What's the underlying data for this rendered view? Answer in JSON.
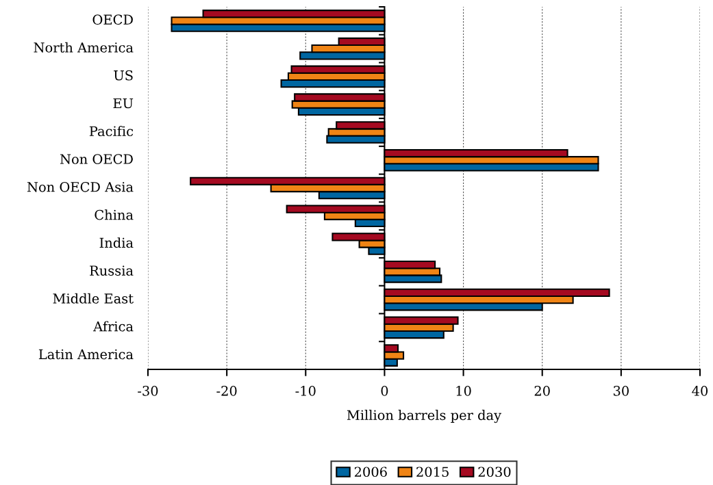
{
  "chart_data": {
    "type": "bar",
    "orientation": "horizontal",
    "xlabel": "Million barrels per day",
    "categories": [
      "OECD",
      "North America",
      "US",
      "EU",
      "Pacific",
      "Non OECD",
      "Non OECD Asia",
      "China",
      "India",
      "Russia",
      "Middle East",
      "Africa",
      "Latin America"
    ],
    "series": [
      {
        "name": "2006",
        "color": "#0066a1",
        "values": [
          -27.0,
          -10.7,
          -13.1,
          -10.9,
          -7.3,
          27.1,
          -8.3,
          -3.7,
          -2.0,
          7.2,
          20.0,
          7.5,
          1.6
        ]
      },
      {
        "name": "2015",
        "color": "#f08415",
        "values": [
          -27.0,
          -9.2,
          -12.2,
          -11.7,
          -7.1,
          27.1,
          -14.4,
          -7.6,
          -3.2,
          7.0,
          23.9,
          8.7,
          2.4
        ]
      },
      {
        "name": "2030",
        "color": "#a50a21",
        "values": [
          -23.0,
          -5.8,
          -11.8,
          -11.4,
          -6.1,
          23.2,
          -24.6,
          -12.4,
          -6.6,
          6.4,
          28.5,
          9.3,
          1.7
        ]
      }
    ],
    "xlim": [
      -30,
      40
    ],
    "xticks": [
      -30,
      -20,
      -10,
      0,
      10,
      20,
      30,
      40
    ],
    "grid": "x",
    "legend": "bottom"
  }
}
